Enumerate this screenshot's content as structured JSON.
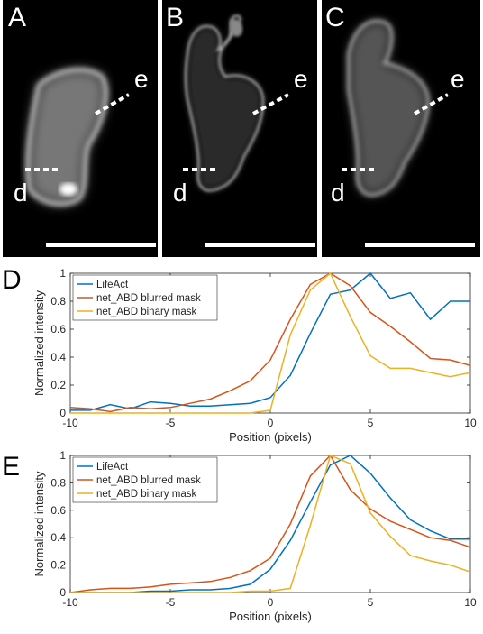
{
  "panels": [
    {
      "letter": "A",
      "label_d": "d",
      "label_e": "e"
    },
    {
      "letter": "B",
      "label_d": "d",
      "label_e": "e"
    },
    {
      "letter": "C",
      "label_d": "d",
      "label_e": "e"
    }
  ],
  "chart_data": [
    {
      "type": "line",
      "panel": "D",
      "xlabel": "Position (pixels)",
      "ylabel": "Normalized intensity",
      "xlim": [
        -10,
        10
      ],
      "ylim": [
        0,
        1
      ],
      "xticks": [
        "-10",
        "-5",
        "0",
        "5",
        "10"
      ],
      "yticks": [
        "0",
        "0.2",
        "0.4",
        "0.6",
        "0.8",
        "1"
      ],
      "legend_position": "top-left",
      "x": [
        -10,
        -9,
        -8,
        -7,
        -6,
        -5,
        -4,
        -3,
        -2,
        -1,
        0,
        1,
        2,
        3,
        4,
        5,
        6,
        7,
        8,
        9,
        10
      ],
      "series": [
        {
          "name": "LifeAct",
          "color": "#0072BD",
          "values": [
            0.02,
            0.02,
            0.06,
            0.03,
            0.08,
            0.07,
            0.05,
            0.05,
            0.06,
            0.07,
            0.11,
            0.27,
            0.57,
            0.85,
            0.88,
            1.0,
            0.82,
            0.86,
            0.67,
            0.8,
            0.8
          ]
        },
        {
          "name": "net_ABD blurred mask",
          "color": "#D95319",
          "values": [
            0.04,
            0.03,
            0.01,
            0.04,
            0.03,
            0.04,
            0.07,
            0.1,
            0.16,
            0.23,
            0.38,
            0.67,
            0.92,
            1.0,
            0.91,
            0.72,
            0.62,
            0.51,
            0.39,
            0.38,
            0.34
          ]
        },
        {
          "name": "net_ABD binary mask",
          "color": "#EDB120",
          "values": [
            0.0,
            0.0,
            0.0,
            0.0,
            0.0,
            0.0,
            0.0,
            0.0,
            0.0,
            0.0,
            0.02,
            0.56,
            0.88,
            1.0,
            0.69,
            0.41,
            0.32,
            0.32,
            0.29,
            0.26,
            0.29
          ]
        }
      ]
    },
    {
      "type": "line",
      "panel": "E",
      "xlabel": "Position (pixels)",
      "ylabel": "Normalized intensity",
      "xlim": [
        -10,
        10
      ],
      "ylim": [
        0,
        1
      ],
      "xticks": [
        "-10",
        "-5",
        "0",
        "5",
        "10"
      ],
      "yticks": [
        "0",
        "0.2",
        "0.4",
        "0.6",
        "0.8",
        "1"
      ],
      "legend_position": "top-left",
      "x": [
        -10,
        -9,
        -8,
        -7,
        -6,
        -5,
        -4,
        -3,
        -2,
        -1,
        0,
        1,
        2,
        3,
        4,
        5,
        6,
        7,
        8,
        9,
        10
      ],
      "series": [
        {
          "name": "LifeAct",
          "color": "#0072BD",
          "values": [
            0.0,
            0.0,
            0.0,
            0.0,
            0.01,
            0.01,
            0.02,
            0.02,
            0.03,
            0.06,
            0.17,
            0.38,
            0.66,
            0.93,
            1.0,
            0.87,
            0.69,
            0.53,
            0.45,
            0.39,
            0.39
          ]
        },
        {
          "name": "net_ABD blurred mask",
          "color": "#D95319",
          "values": [
            0.0,
            0.02,
            0.03,
            0.03,
            0.04,
            0.06,
            0.07,
            0.08,
            0.11,
            0.16,
            0.25,
            0.5,
            0.85,
            1.0,
            0.75,
            0.61,
            0.52,
            0.46,
            0.4,
            0.38,
            0.33
          ]
        },
        {
          "name": "net_ABD binary mask",
          "color": "#EDB120",
          "values": [
            0.0,
            0.0,
            0.0,
            0.0,
            0.0,
            0.0,
            0.0,
            0.0,
            0.0,
            0.01,
            0.01,
            0.03,
            0.49,
            1.0,
            0.94,
            0.58,
            0.41,
            0.27,
            0.23,
            0.2,
            0.15
          ]
        }
      ]
    }
  ]
}
